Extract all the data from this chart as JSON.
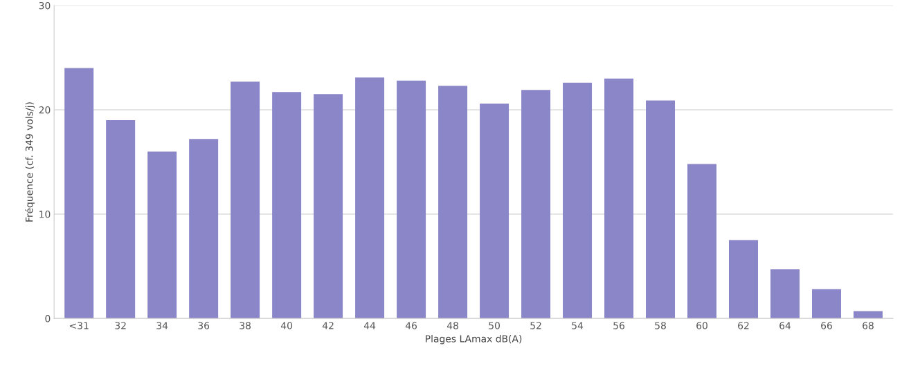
{
  "chart_data": {
    "type": "bar",
    "xlabel": "Plages LAmax dB(A)",
    "ylabel": "Fréquence (cf. 349 vols/j)",
    "categories": [
      "<31",
      "32",
      "34",
      "36",
      "38",
      "40",
      "42",
      "44",
      "46",
      "48",
      "50",
      "52",
      "54",
      "56",
      "58",
      "60",
      "62",
      "64",
      "66",
      "68"
    ],
    "values": [
      24.0,
      19.0,
      16.0,
      17.2,
      22.7,
      21.7,
      21.5,
      23.1,
      22.8,
      22.3,
      20.6,
      21.9,
      22.6,
      23.0,
      20.9,
      14.8,
      7.5,
      4.7,
      2.8,
      0.7
    ],
    "color": "#8b86c8",
    "ylim": [
      0,
      30
    ],
    "yticks": [
      0,
      10,
      20,
      30
    ],
    "grid": "y"
  }
}
